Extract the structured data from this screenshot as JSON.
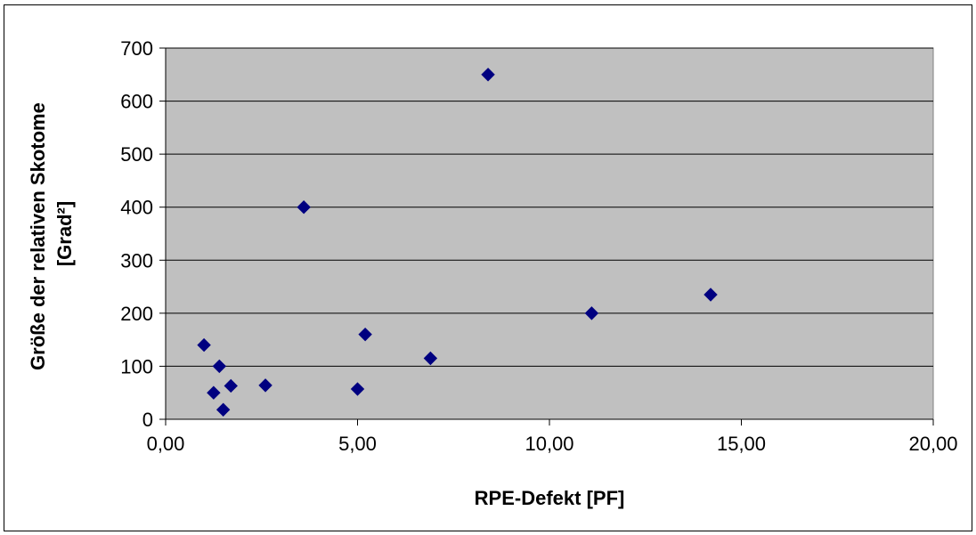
{
  "chart_data": {
    "type": "scatter",
    "title": "",
    "xlabel": "RPE-Defekt [PF]",
    "ylabel_lines": [
      "Größe der relativen Skotome",
      "[Grad²]"
    ],
    "xlim": [
      0,
      20
    ],
    "ylim": [
      0,
      700
    ],
    "x_ticks": [
      0,
      5,
      10,
      15,
      20
    ],
    "x_tick_labels": [
      "0,00",
      "5,00",
      "10,00",
      "15,00",
      "20,00"
    ],
    "y_ticks": [
      0,
      100,
      200,
      300,
      400,
      500,
      600,
      700
    ],
    "y_tick_labels": [
      "0",
      "100",
      "200",
      "300",
      "400",
      "500",
      "600",
      "700"
    ],
    "grid": "horizontal",
    "plot_background": "#c0c0c0",
    "marker_color": "#000080",
    "marker": "diamond",
    "series": [
      {
        "points": [
          {
            "x": 1.0,
            "y": 140
          },
          {
            "x": 1.25,
            "y": 50
          },
          {
            "x": 1.4,
            "y": 100
          },
          {
            "x": 1.5,
            "y": 18
          },
          {
            "x": 1.7,
            "y": 63
          },
          {
            "x": 2.6,
            "y": 64
          },
          {
            "x": 3.6,
            "y": 400
          },
          {
            "x": 5.0,
            "y": 57
          },
          {
            "x": 5.2,
            "y": 160
          },
          {
            "x": 6.9,
            "y": 115
          },
          {
            "x": 8.4,
            "y": 650
          },
          {
            "x": 11.1,
            "y": 200
          },
          {
            "x": 14.2,
            "y": 235
          }
        ]
      }
    ]
  }
}
